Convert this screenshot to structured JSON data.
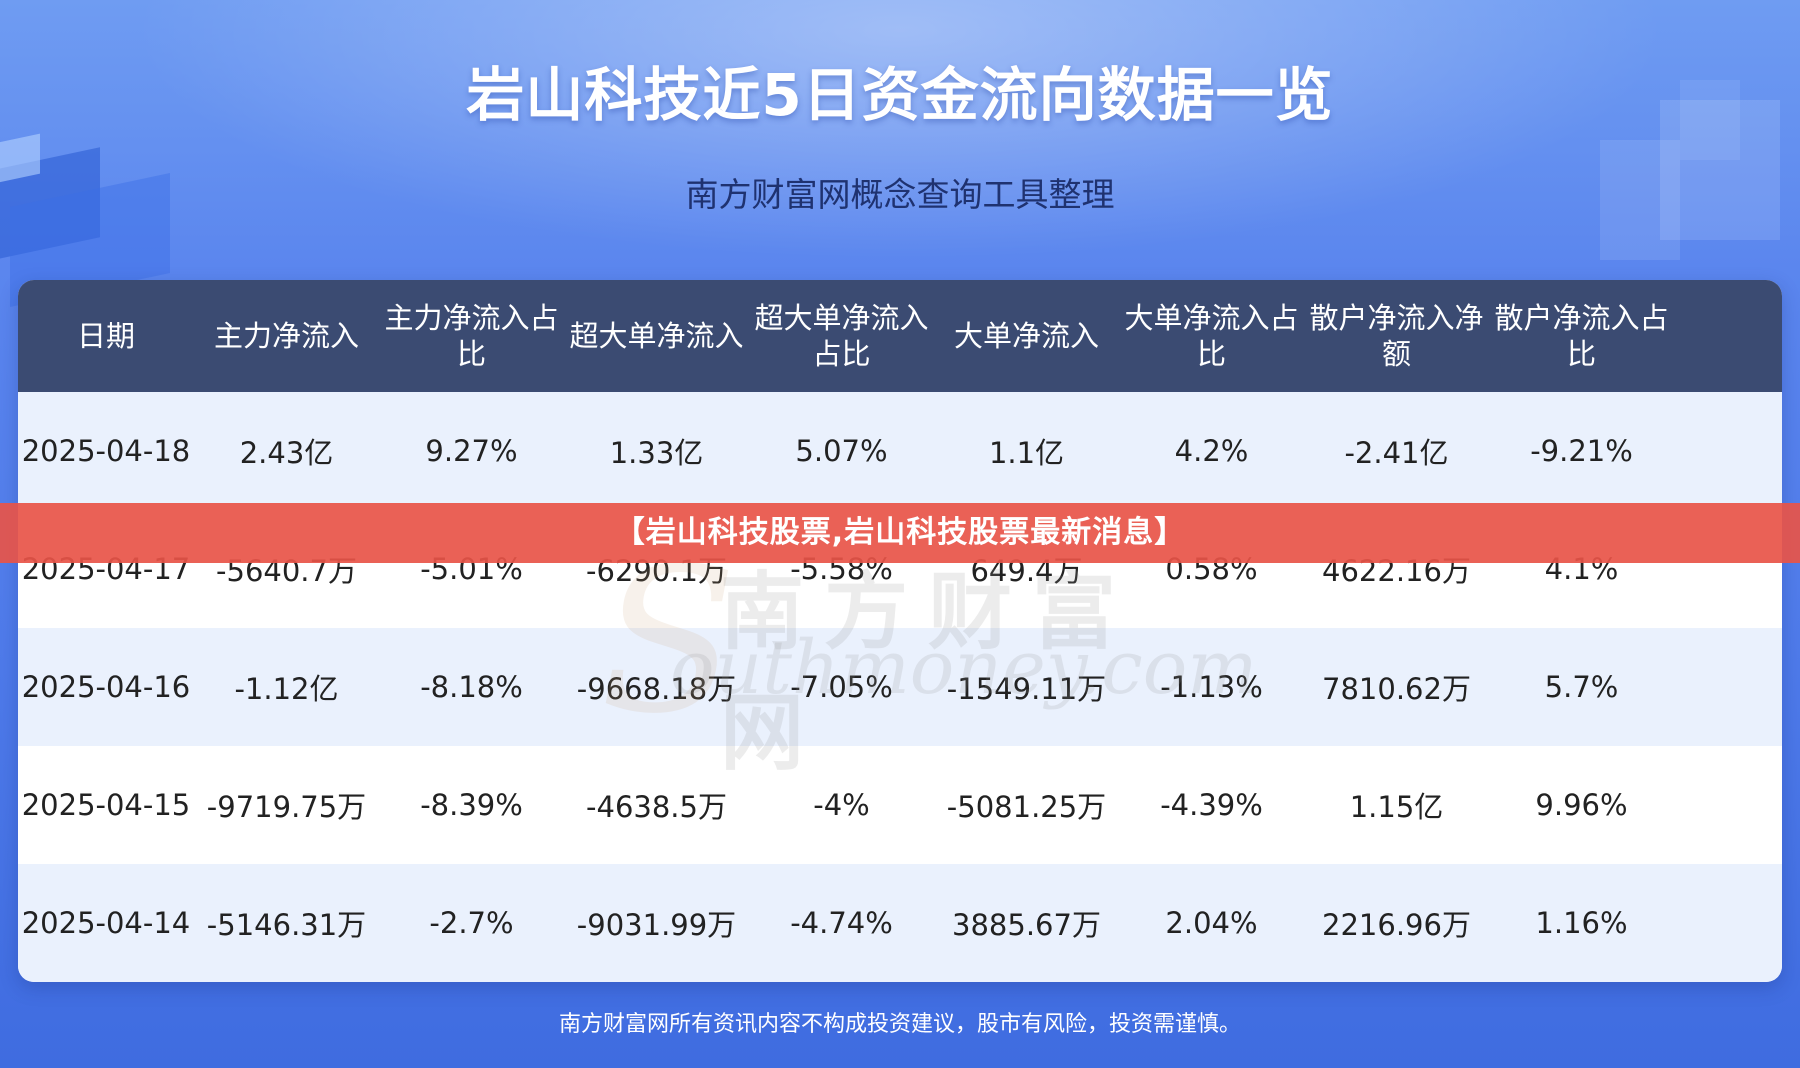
{
  "header": {
    "title": "岩山科技近5日资金流向数据一览",
    "subtitle": "南方财富网概念查询工具整理"
  },
  "table": {
    "columns": [
      "日期",
      "主力净流入",
      "主力净流入占比",
      "超大单净流入",
      "超大单净流入占比",
      "大单净流入",
      "大单净流入占比",
      "散户净流入净额",
      "散户净流入占比"
    ],
    "rows": [
      [
        "2025-04-18",
        "2.43亿",
        "9.27%",
        "1.33亿",
        "5.07%",
        "1.1亿",
        "4.2%",
        "-2.41亿",
        "-9.21%"
      ],
      [
        "2025-04-17",
        "-5640.7万",
        "-5.01%",
        "-6290.1万",
        "-5.58%",
        "649.4万",
        "0.58%",
        "4622.16万",
        "4.1%"
      ],
      [
        "2025-04-16",
        "-1.12亿",
        "-8.18%",
        "-9668.18万",
        "-7.05%",
        "-1549.11万",
        "-1.13%",
        "7810.62万",
        "5.7%"
      ],
      [
        "2025-04-15",
        "-9719.75万",
        "-8.39%",
        "-4638.5万",
        "-4%",
        "-5081.25万",
        "-4.39%",
        "1.15亿",
        "9.96%"
      ],
      [
        "2025-04-14",
        "-5146.31万",
        "-2.7%",
        "-9031.99万",
        "-4.74%",
        "3885.67万",
        "2.04%",
        "2216.96万",
        "1.16%"
      ]
    ]
  },
  "banner": {
    "text": "【岩山科技股票,岩山科技股票最新消息】"
  },
  "watermark": {
    "cn": "南方财富网",
    "en": "outhmoney.com",
    "letter": "S"
  },
  "footer": {
    "disclaimer": "南方财富网所有资讯内容不构成投资建议，股市有风险，投资需谨慎。"
  },
  "colors": {
    "background": "#4f7bea",
    "table_header": "#3b4b72",
    "row_alt": "#eaf1fd",
    "banner": "#e85448"
  }
}
